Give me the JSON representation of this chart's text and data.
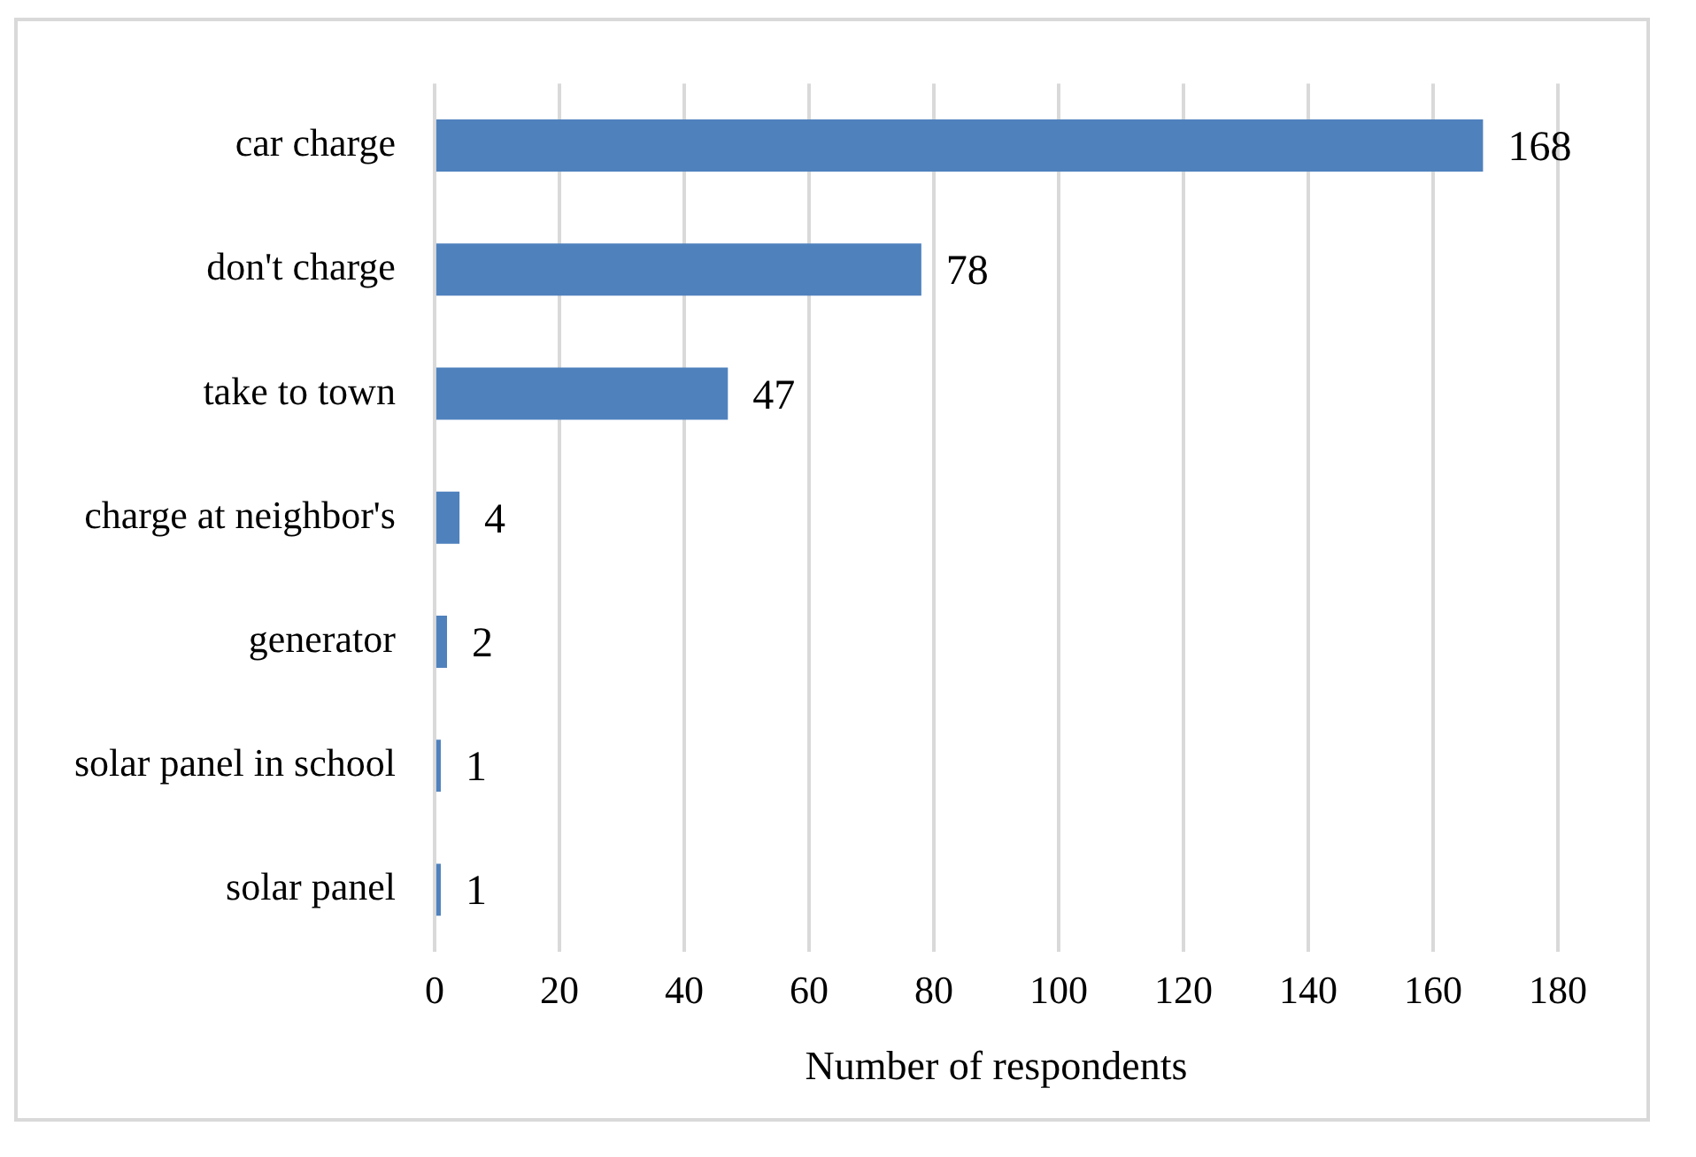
{
  "chart_data": {
    "type": "bar",
    "orientation": "horizontal",
    "xlabel": "Number of respondents",
    "categories": [
      "car charge",
      "don't charge",
      "take to town",
      "charge at neighbor's",
      "generator",
      "solar panel in school",
      "solar panel"
    ],
    "values": [
      168,
      78,
      47,
      4,
      2,
      1,
      1
    ],
    "color": "#4f81bd",
    "xlim": [
      0,
      180
    ],
    "xticks": [
      0,
      20,
      40,
      60,
      80,
      100,
      120,
      140,
      160,
      180
    ],
    "grid": "x",
    "data_labels": true,
    "legend": false
  }
}
